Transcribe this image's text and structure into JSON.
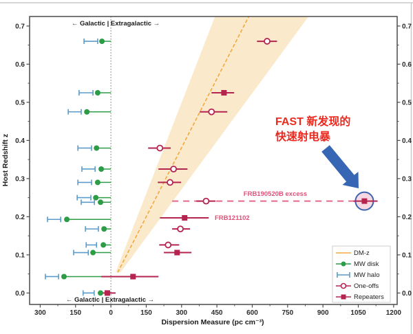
{
  "figure": {
    "frame_color": "#c9c9c9"
  },
  "chart_data": {
    "type": "scatter",
    "title": "",
    "xlabel": "Dispersion Measure (pc cm⁻³)",
    "ylabel": "Host Redshift z",
    "xlim": [
      -345,
      1215
    ],
    "ylim": [
      -0.03,
      0.725
    ],
    "x_ticks": [
      {
        "v": -300,
        "t": "300"
      },
      {
        "v": -150,
        "t": "150"
      },
      {
        "v": 0,
        "t": "0"
      },
      {
        "v": 150,
        "t": "150"
      },
      {
        "v": 300,
        "t": "300"
      },
      {
        "v": 450,
        "t": "450"
      },
      {
        "v": 600,
        "t": "600"
      },
      {
        "v": 750,
        "t": "750"
      },
      {
        "v": 900,
        "t": "900"
      },
      {
        "v": 1050,
        "t": "1050"
      },
      {
        "v": 1200,
        "t": "1200"
      }
    ],
    "y_ticks": [
      0,
      0.1,
      0.2,
      0.3,
      0.4,
      0.5,
      0.6,
      0.7
    ],
    "annotation_top": "← Galactic | Extragalactic →",
    "annotation_bottom": "← Galactic | Extragalactic →",
    "dm_z_relation": {
      "line": [
        [
          29,
          0.054
        ],
        [
          585,
          0.725
        ]
      ],
      "band": [
        [
          20,
          0.054
        ],
        [
          442,
          0.725
        ],
        [
          839,
          0.725
        ],
        [
          41,
          0.054
        ]
      ]
    },
    "zero_line_dm": 0,
    "milky_way_rows": [
      {
        "z": 0.66,
        "halo": [
          -114,
          -56
        ],
        "disk": -38
      },
      {
        "z": 0.525,
        "halo": [
          -135,
          -76
        ],
        "disk": -56
      },
      {
        "z": 0.475,
        "halo": [
          -181,
          -126
        ],
        "disk": -102
      },
      {
        "z": 0.38,
        "halo": [
          -140,
          -82
        ],
        "disk": -61
      },
      {
        "z": 0.325,
        "halo": [
          -123,
          -67
        ],
        "disk": -41
      },
      {
        "z": 0.29,
        "halo": [
          -140,
          -82
        ],
        "disk": -56
      },
      {
        "z": 0.25,
        "halo": [
          -143,
          -85
        ],
        "disk": -64
      },
      {
        "z": 0.238,
        "halo": [
          -126,
          -70
        ],
        "disk": -44
      },
      {
        "z": 0.193,
        "halo": [
          -269,
          -213
        ],
        "disk": -187
      },
      {
        "z": 0.168,
        "halo": [
          -108,
          -53
        ],
        "disk": -29
      },
      {
        "z": 0.126,
        "halo": [
          -105,
          -61
        ],
        "disk": -32
      },
      {
        "z": 0.106,
        "halo": [
          -158,
          -96
        ],
        "disk": -76
      },
      {
        "z": 0.043,
        "halo": [
          -278,
          -222
        ],
        "disk": -199
      },
      {
        "z": 0.0,
        "halo": [
          -118,
          -71
        ],
        "disk": -44
      }
    ],
    "frb_points": [
      {
        "type": "one-off",
        "z": 0.66,
        "dm": 663,
        "err": [
          620,
          705
        ]
      },
      {
        "type": "repeater",
        "z": 0.525,
        "dm": 480,
        "err": [
          427,
          523
        ]
      },
      {
        "type": "one-off",
        "z": 0.475,
        "dm": 427,
        "err": [
          377,
          494
        ]
      },
      {
        "type": "one-off",
        "z": 0.38,
        "dm": 208,
        "err": [
          158,
          254
        ]
      },
      {
        "type": "one-off",
        "z": 0.325,
        "dm": 266,
        "err": [
          202,
          325
        ]
      },
      {
        "type": "one-off",
        "z": 0.29,
        "dm": 251,
        "err": [
          199,
          298
        ]
      },
      {
        "type": "one-off",
        "z": 0.241,
        "dm": 404,
        "err": [
          363,
          444
        ]
      },
      {
        "type": "repeater",
        "z": 0.241,
        "dm": 1076,
        "err": [
          1029,
          1132
        ],
        "highlight": true
      },
      {
        "type": "repeater",
        "z": 0.197,
        "dm": 313,
        "err": [
          208,
          415
        ],
        "label": "FRB121102"
      },
      {
        "type": "one-off",
        "z": 0.168,
        "dm": 295,
        "err": [
          260,
          336
        ]
      },
      {
        "type": "one-off",
        "z": 0.126,
        "dm": 243,
        "err": [
          205,
          290
        ]
      },
      {
        "type": "repeater",
        "z": 0.106,
        "dm": 281,
        "err": [
          225,
          342
        ]
      },
      {
        "type": "repeater",
        "z": 0.043,
        "dm": 94,
        "err": [
          -41,
          202
        ]
      },
      {
        "type": "repeater",
        "z": 0.0,
        "dm": -15,
        "err": [
          -32,
          20
        ]
      }
    ],
    "excess_line": {
      "z": 0.241,
      "from": 260,
      "to": 1029,
      "label": "FRB190520B excess"
    },
    "labels": {
      "frb121102": "FRB121102"
    },
    "callout": {
      "line1": "FAST 新发现的",
      "line2": "快速射电暴"
    },
    "legend": [
      {
        "label": "DM-z",
        "type": "line"
      },
      {
        "label": "MW disk",
        "type": "disk"
      },
      {
        "label": "MW halo",
        "type": "halo"
      },
      {
        "label": "One-offs",
        "type": "one-off"
      },
      {
        "label": "Repeaters",
        "type": "repeater"
      }
    ],
    "colors": {
      "dmz_line": "#f3a73c",
      "dmz_band": "#fbe9cb",
      "mw_disk": "#2d9c46",
      "mw_halo": "#5b9bc9",
      "frb": "#b5234f",
      "excess": "#e4688a",
      "highlight_fill": "#f7d5e0",
      "highlight_edge": "#3c64b0",
      "arrow": "#3766b4",
      "callout_text": "#ea2a1f",
      "axis": "#4a4a4a",
      "zero_line": "#8a8a8a"
    }
  }
}
